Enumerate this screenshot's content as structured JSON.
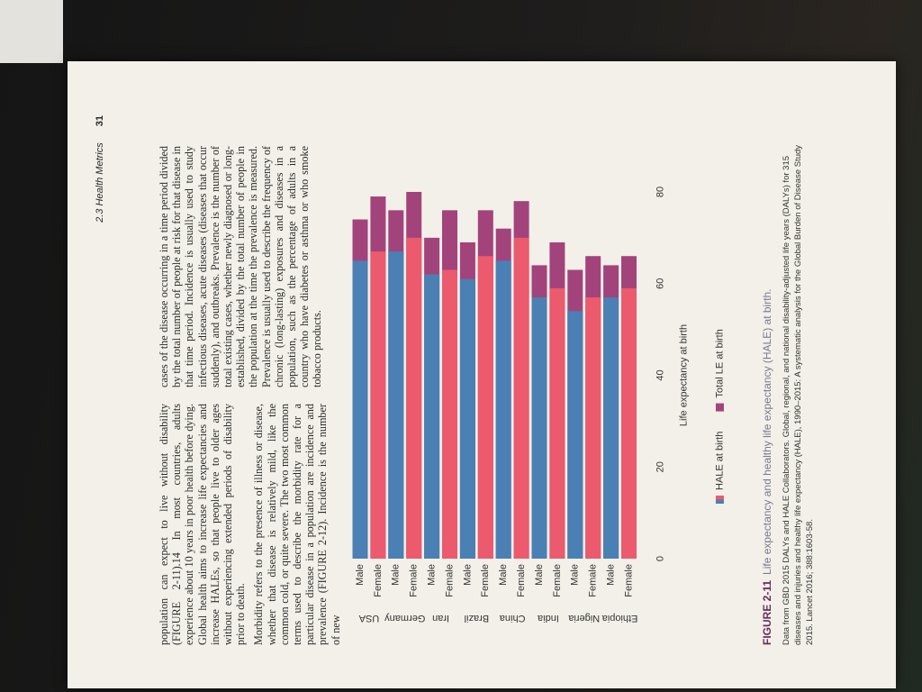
{
  "header": {
    "section": "2.3 Health Metrics",
    "page": "31"
  },
  "columns": [
    [
      "population can expect to live without disability (FIGURE 2-11).14 In most countries, adults experience about 10 years in poor health before dying. Global health aims to increase life expectancies and increase HALEs, so that people live to older ages without experiencing extended periods of disability prior to death.",
      "Morbidity refers to the presence of illness or disease, whether that disease is relatively mild, like the common cold, or quite severe. The two most common terms used to describe the morbidity rate for a particular disease in a population are incidence and prevalence (FIGURE 2-12). Incidence is the number of new"
    ],
    [
      "cases of the disease occurring in a time period divided by the total number of people at risk for that disease in that time period. Incidence is usually used to study infectious diseases, acute diseases (diseases that occur suddenly), and outbreaks. Prevalence is the number of total existing cases, whether newly diagnosed or long-established, divided by the total number of people in the population at the time the prevalence is measured. Prevalence is usually used to describe the frequency of chronic (long-lasting) exposures and diseases in a population, such as the percentage of adults in a country who have diabetes or asthma or who smoke tobacco products."
    ]
  ],
  "chart_data": {
    "type": "bar",
    "orientation": "horizontal",
    "overlap": true,
    "groups": [
      "USA",
      "Germany",
      "Iran",
      "Brazil",
      "China",
      "India",
      "Nigeria",
      "Ethiopia"
    ],
    "categories": [
      "Male",
      "Female",
      "Male",
      "Female",
      "Male",
      "Female",
      "Male",
      "Female",
      "Male",
      "Female",
      "Male",
      "Female",
      "Male",
      "Female",
      "Male",
      "Female"
    ],
    "series": [
      {
        "name": "Total LE at birth",
        "color": "#a3437b",
        "values": [
          74,
          79,
          76,
          80,
          70,
          76,
          69,
          76,
          72,
          78,
          64,
          69,
          63,
          66,
          64,
          66
        ]
      },
      {
        "name": "HALE at birth",
        "color": [
          "#4a80b4",
          "#ec5a6d"
        ],
        "values": [
          65,
          67,
          67,
          70,
          62,
          63,
          61,
          66,
          65,
          70,
          57,
          59,
          54,
          57,
          57,
          59
        ]
      }
    ],
    "xlabel": "Life expectancy at birth",
    "xlim": [
      0,
      80
    ],
    "xticks": [
      0,
      20,
      40,
      60,
      80
    ],
    "grid": false
  },
  "caption": {
    "label": "FIGURE 2-11",
    "title": "Life expectancy and healthy life expectancy (HALE) at birth.",
    "source": "Data from GBD 2015 DALYs and HALE Collaborators. Global, regional, and national disability-adjusted life years (DALYs) for 315 diseases and injuries and healthy life expectancy (HALE), 1990–2015: A systematic analysis for the Global Burden of Disease Study 2015. Lancet 2016; 388:1603-58."
  }
}
